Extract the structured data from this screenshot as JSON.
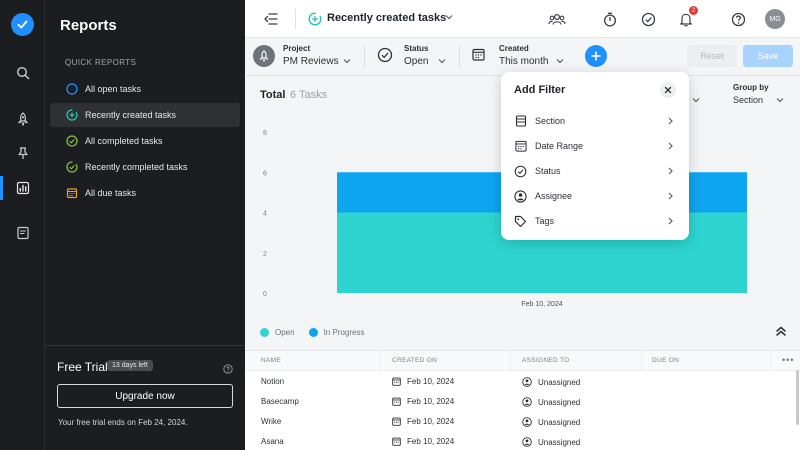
{
  "sidebar": {
    "title": "Reports",
    "section_label": "Quick reports",
    "items": [
      {
        "label": "All open tasks",
        "icon": "circle-icon",
        "color": "#1e90ff"
      },
      {
        "label": "Recently created tasks",
        "icon": "plus-circle-icon",
        "color": "#26c6b0"
      },
      {
        "label": "All completed tasks",
        "icon": "check-circle-icon",
        "color": "#7cc142"
      },
      {
        "label": "Recently completed tasks",
        "icon": "check-circle-refresh-icon",
        "color": "#7cc142"
      },
      {
        "label": "All due tasks",
        "icon": "calendar-icon",
        "color": "#f0a020"
      }
    ],
    "trial": {
      "title": "Free Trial",
      "badge": "13 days left",
      "button": "Upgrade now",
      "note": "Your free trial ends on Feb 24, 2024."
    }
  },
  "header": {
    "title": "Recently created tasks",
    "notification_count": "2",
    "avatar_initials": "MG"
  },
  "filters": {
    "project": {
      "label": "Project",
      "value": "PM Reviews"
    },
    "status": {
      "label": "Status",
      "value": "Open"
    },
    "created": {
      "label": "Created",
      "value": "This month"
    },
    "reset_label": "Reset",
    "save_label": "Save"
  },
  "summary": {
    "total_label": "Total",
    "total_count": "6 Tasks",
    "group_by_label": "Group by",
    "group_by_value": "Section"
  },
  "chart_data": {
    "type": "bar",
    "stacked": true,
    "categories": [
      "Feb 10, 2024"
    ],
    "series": [
      {
        "name": "Open",
        "values": [
          4
        ],
        "color": "#2dd4d0"
      },
      {
        "name": "In Progress",
        "values": [
          2
        ],
        "color": "#0ea5f0"
      }
    ],
    "ylim": [
      0,
      8
    ],
    "yticks": [
      "0",
      "2",
      "4",
      "6",
      "8"
    ],
    "legend_position": "bottom-left",
    "grid": false
  },
  "table": {
    "columns": [
      "Name",
      "Created on",
      "Assigned to",
      "Due on"
    ],
    "rows": [
      {
        "name": "Notion",
        "created_on": "Feb 10, 2024",
        "assigned_to": "Unassigned",
        "due_on": ""
      },
      {
        "name": "Basecamp",
        "created_on": "Feb 10, 2024",
        "assigned_to": "Unassigned",
        "due_on": ""
      },
      {
        "name": "Wrike",
        "created_on": "Feb 10, 2024",
        "assigned_to": "Unassigned",
        "due_on": ""
      },
      {
        "name": "Asana",
        "created_on": "Feb 10, 2024",
        "assigned_to": "Unassigned",
        "due_on": ""
      }
    ],
    "menu_glyph": "•••"
  },
  "popover": {
    "title": "Add Filter",
    "items": [
      {
        "label": "Section",
        "icon": "section-icon"
      },
      {
        "label": "Date Range",
        "icon": "calendar-icon"
      },
      {
        "label": "Status",
        "icon": "status-check-icon"
      },
      {
        "label": "Assignee",
        "icon": "assignee-icon"
      },
      {
        "label": "Tags",
        "icon": "tag-icon"
      }
    ]
  }
}
